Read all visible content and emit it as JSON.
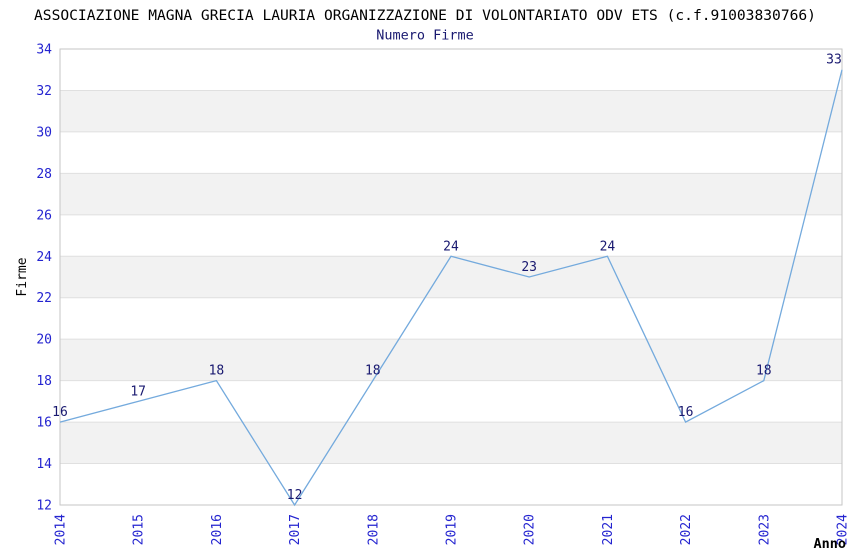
{
  "chart_data": {
    "type": "line",
    "title": "ASSOCIAZIONE MAGNA GRECIA LAURIA ORGANIZZAZIONE DI VOLONTARIATO ODV ETS (c.f.91003830766)",
    "subtitle": "Numero Firme",
    "xlabel": "Anno",
    "ylabel": "Firme",
    "x": [
      "2014",
      "2015",
      "2016",
      "2017",
      "2018",
      "2019",
      "2020",
      "2021",
      "2022",
      "2023",
      "2024"
    ],
    "series": [
      {
        "name": "Numero Firme",
        "values": [
          16,
          17,
          18,
          12,
          18,
          24,
          23,
          24,
          16,
          18,
          33
        ]
      }
    ],
    "ylim": [
      12,
      34
    ],
    "ytick_step": 2,
    "yticks": [
      12,
      14,
      16,
      18,
      20,
      22,
      24,
      26,
      28,
      30,
      32,
      34
    ],
    "grid": "horizontal-alternating-bands",
    "legend": "none",
    "point_labels_visible": true,
    "colors": {
      "line": "#74aadd",
      "tick_label": "#2424d0",
      "point_label": "#191970",
      "subtitle": "#191970",
      "title": "#000000",
      "axis_label": "#000000",
      "band_fill": "#f2f2f2",
      "gridline": "#e0e0e0",
      "plot_border": "#c6c6c6",
      "background": "#ffffff"
    }
  }
}
